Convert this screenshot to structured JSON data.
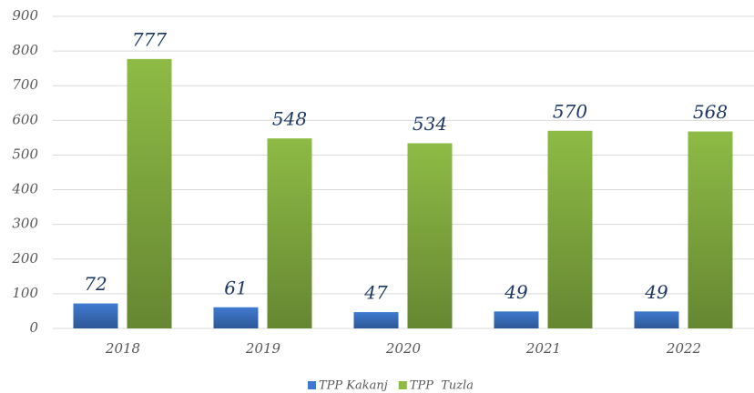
{
  "chart_data": {
    "type": "bar",
    "categories": [
      "2018",
      "2019",
      "2020",
      "2021",
      "2022"
    ],
    "series": [
      {
        "name": "TPP Kakanj",
        "color": "#3f7ad0",
        "values": [
          72,
          61,
          47,
          49,
          49
        ]
      },
      {
        "name": "TPP  Tuzla",
        "color": "#8dbb45",
        "values": [
          777,
          548,
          534,
          570,
          568
        ]
      }
    ],
    "ylim": [
      0,
      900
    ],
    "yticks": [
      0,
      100,
      200,
      300,
      400,
      500,
      600,
      700,
      800,
      900
    ],
    "grid": true,
    "legend": "bottom"
  }
}
